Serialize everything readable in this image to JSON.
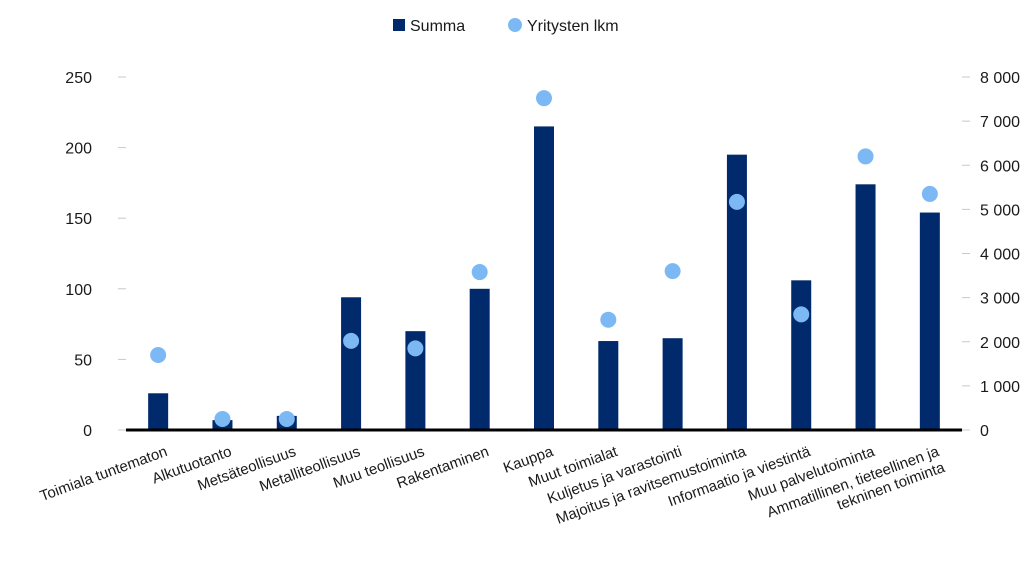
{
  "chart_data": {
    "type": "bar",
    "categories": [
      [
        "Toimiala  tuntematon"
      ],
      [
        "Alkutuotanto"
      ],
      [
        "Metsäteollisuus"
      ],
      [
        "Metalliteollisuus"
      ],
      [
        "Muu teollisuus"
      ],
      [
        "Rakentaminen"
      ],
      [
        "Kauppa"
      ],
      [
        "Muut toimialat"
      ],
      [
        "Kuljetus ja varastointi"
      ],
      [
        "Majoitus ja ravitsemustoiminta"
      ],
      [
        "Informaatio ja viestintä"
      ],
      [
        "Muu palvelutoiminta"
      ],
      [
        "Ammatillinen, tieteellinen ja",
        "tekninen toiminta"
      ]
    ],
    "series": [
      {
        "name": "Summa",
        "type": "bar",
        "axis": "left",
        "color": "#002a6b",
        "values": [
          26,
          7,
          10,
          94,
          70,
          100,
          215,
          63,
          65,
          195,
          106,
          174,
          154
        ]
      },
      {
        "name": "Yritysten lkm",
        "type": "scatter",
        "axis": "right",
        "color": "#7cb9f4",
        "values": [
          1700,
          250,
          250,
          2020,
          1850,
          3580,
          7520,
          2500,
          3600,
          5170,
          2620,
          6200,
          5350
        ]
      }
    ],
    "y_left": {
      "ylim": [
        0,
        250
      ],
      "ticks": [
        "0",
        "50",
        "100",
        "150",
        "200",
        "250"
      ],
      "tick_values": [
        0,
        50,
        100,
        150,
        200,
        250
      ]
    },
    "y_right": {
      "ylim": [
        0,
        8000
      ],
      "ticks": [
        "0",
        "1 000",
        "2 000",
        "3 000",
        "4 000",
        "5 000",
        "6 000",
        "7 000",
        "8 000"
      ],
      "tick_values": [
        0,
        1000,
        2000,
        3000,
        4000,
        5000,
        6000,
        7000,
        8000
      ]
    },
    "grid": false,
    "legend_position": "top-center",
    "title": "",
    "xlabel": "",
    "ylabel": ""
  }
}
